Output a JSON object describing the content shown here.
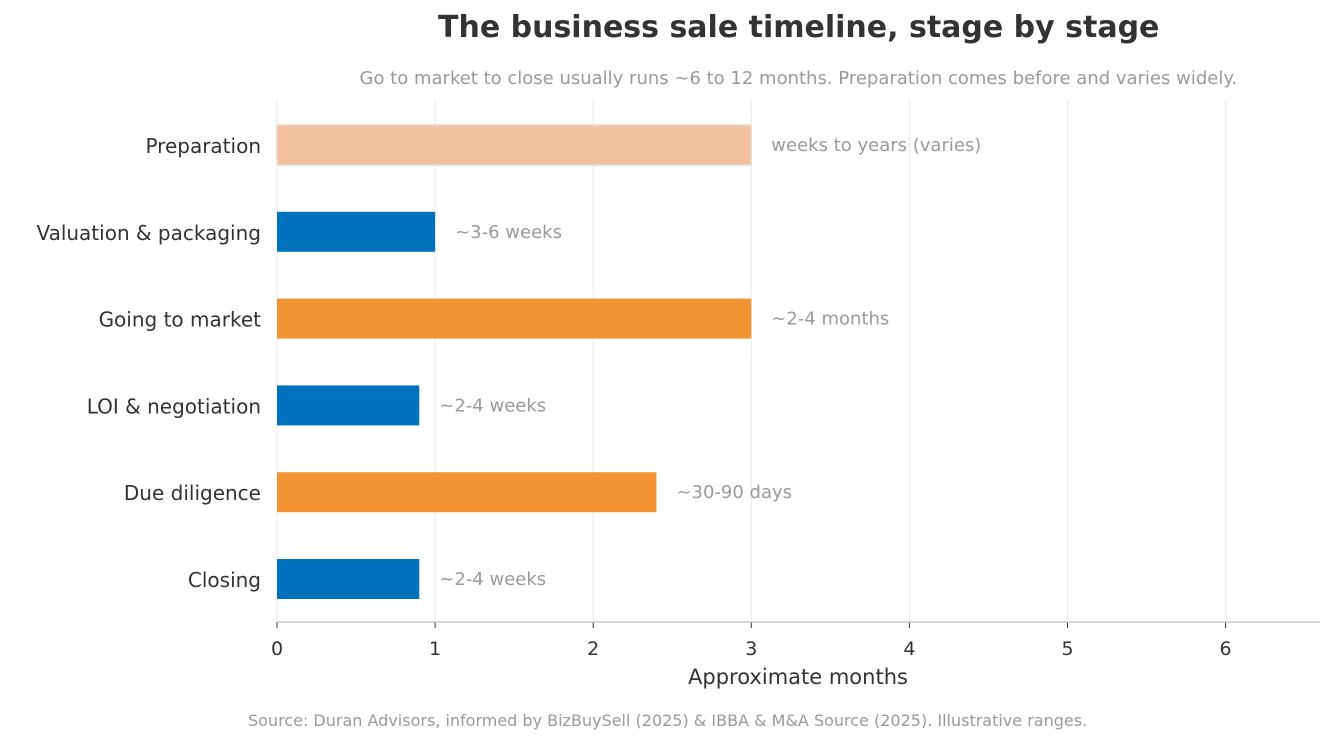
{
  "chart_data": {
    "type": "bar",
    "orientation": "horizontal",
    "title": "The business sale timeline, stage by stage",
    "subtitle": "Go to market to close usually runs ~6 to 12 months. Preparation comes before and varies widely.",
    "source": "Source: Duran Advisors, informed by BizBuySell (2025) & IBBA & M&A Source (2025). Illustrative ranges.",
    "xlabel": "Approximate months",
    "ylabel": "",
    "xlim": [
      0,
      6.6
    ],
    "xticks": [
      0,
      1,
      2,
      3,
      4,
      5,
      6
    ],
    "grid": true,
    "categories": [
      "Preparation",
      "Valuation & packaging",
      "Going to market",
      "LOI & negotiation",
      "Due diligence",
      "Closing"
    ],
    "values": [
      3.0,
      1.0,
      3.0,
      0.9,
      2.4,
      0.9
    ],
    "labels": [
      "weeks to years (varies)",
      "~3-6 weeks",
      "~2-4 months",
      "~2-4 weeks",
      "~30-90 days",
      "~2-4 weeks"
    ],
    "colors": [
      "#f2c19d",
      "#0072bc",
      "#f39433",
      "#0072bc",
      "#f39433",
      "#0072bc"
    ]
  }
}
